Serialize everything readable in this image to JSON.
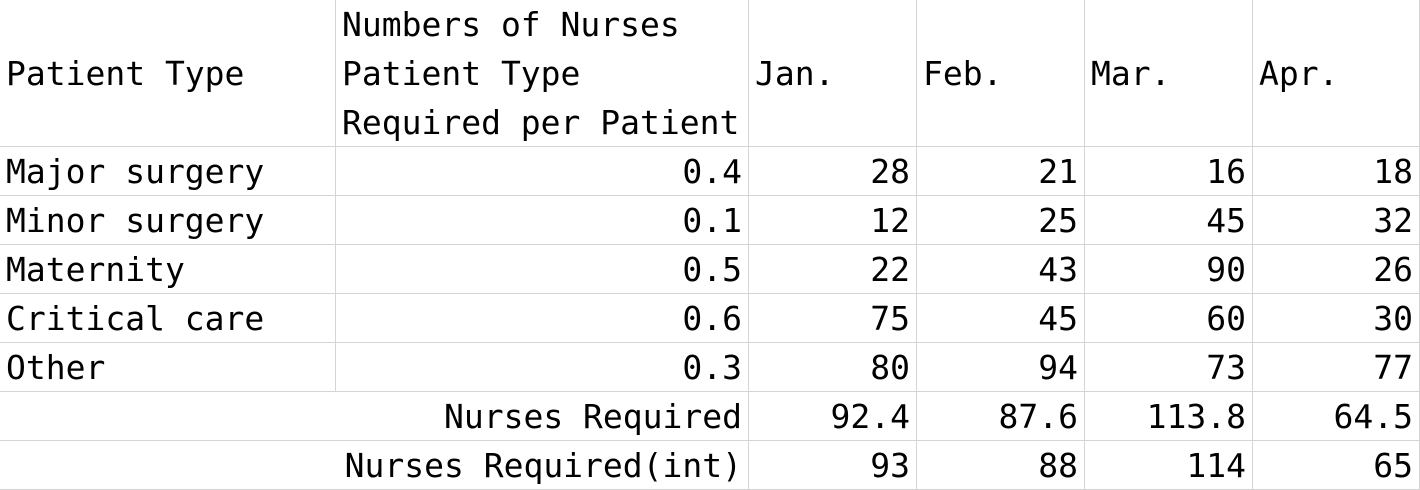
{
  "header": {
    "patient_type": "Patient Type",
    "nurses_per_patient_lines": [
      "Numbers of Nurses",
      "Patient Type",
      "Required per Patient"
    ],
    "months": [
      "Jan.",
      "Feb.",
      "Mar.",
      "Apr."
    ]
  },
  "rows": [
    {
      "type": "Major surgery",
      "ratio": "0.4",
      "values": [
        "28",
        "21",
        "16",
        "18"
      ]
    },
    {
      "type": "Minor surgery",
      "ratio": "0.1",
      "values": [
        "12",
        "25",
        "45",
        "32"
      ]
    },
    {
      "type": "Maternity",
      "ratio": "0.5",
      "values": [
        "22",
        "43",
        "90",
        "26"
      ]
    },
    {
      "type": "Critical care",
      "ratio": "0.6",
      "values": [
        "75",
        "45",
        "60",
        "30"
      ]
    },
    {
      "type": "Other",
      "ratio": "0.3",
      "values": [
        "80",
        "94",
        "73",
        "77"
      ]
    }
  ],
  "totals": [
    {
      "label": "Nurses Required",
      "values": [
        "92.4",
        "87.6",
        "113.8",
        "64.5"
      ]
    },
    {
      "label": "Nurses Required(int)",
      "values": [
        "93",
        "88",
        "114",
        "65"
      ]
    }
  ]
}
